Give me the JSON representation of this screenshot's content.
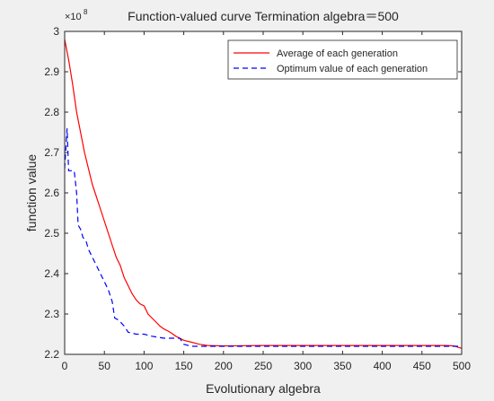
{
  "figure": {
    "background": "#f0f0f0"
  },
  "chart_data": {
    "type": "line",
    "title": "Function-valued curve  Termination algebra＝500",
    "xlabel": "Evolutionary algebra",
    "ylabel": "function value",
    "y_exponent_label": "×10",
    "y_exponent_power": "8",
    "xlim": [
      0,
      500
    ],
    "ylim": [
      2.2,
      3.0
    ],
    "x_ticks": [
      0,
      50,
      100,
      150,
      200,
      250,
      300,
      350,
      400,
      450,
      500
    ],
    "y_ticks": [
      2.2,
      2.3,
      2.4,
      2.5,
      2.6,
      2.7,
      2.8,
      2.9,
      3.0
    ],
    "y_tick_labels": [
      "2.2",
      "2.3",
      "2.4",
      "2.5",
      "2.6",
      "2.7",
      "2.8",
      "2.9",
      "3"
    ],
    "grid": false,
    "legend_position": "top-right",
    "series": [
      {
        "name": "Average of each generation",
        "color": "#ff0000",
        "style": "solid",
        "points": [
          [
            0,
            2.98
          ],
          [
            5,
            2.93
          ],
          [
            10,
            2.87
          ],
          [
            15,
            2.8
          ],
          [
            20,
            2.75
          ],
          [
            25,
            2.7
          ],
          [
            30,
            2.66
          ],
          [
            35,
            2.62
          ],
          [
            40,
            2.59
          ],
          [
            45,
            2.56
          ],
          [
            50,
            2.53
          ],
          [
            55,
            2.5
          ],
          [
            60,
            2.47
          ],
          [
            65,
            2.44
          ],
          [
            70,
            2.42
          ],
          [
            75,
            2.39
          ],
          [
            80,
            2.37
          ],
          [
            85,
            2.35
          ],
          [
            90,
            2.335
          ],
          [
            95,
            2.325
          ],
          [
            100,
            2.32
          ],
          [
            105,
            2.3
          ],
          [
            110,
            2.29
          ],
          [
            115,
            2.28
          ],
          [
            120,
            2.27
          ],
          [
            125,
            2.263
          ],
          [
            130,
            2.258
          ],
          [
            135,
            2.252
          ],
          [
            140,
            2.245
          ],
          [
            145,
            2.24
          ],
          [
            150,
            2.235
          ],
          [
            160,
            2.23
          ],
          [
            170,
            2.225
          ],
          [
            180,
            2.222
          ],
          [
            200,
            2.221
          ],
          [
            250,
            2.222
          ],
          [
            300,
            2.222
          ],
          [
            350,
            2.222
          ],
          [
            400,
            2.222
          ],
          [
            450,
            2.222
          ],
          [
            480,
            2.222
          ],
          [
            490,
            2.221
          ],
          [
            500,
            2.215
          ]
        ]
      },
      {
        "name": "Optimum value of each generation",
        "color": "#0000ff",
        "style": "dashed",
        "points": [
          [
            0,
            2.66
          ],
          [
            3,
            2.76
          ],
          [
            5,
            2.655
          ],
          [
            12,
            2.655
          ],
          [
            15,
            2.6
          ],
          [
            17,
            2.52
          ],
          [
            20,
            2.51
          ],
          [
            23,
            2.49
          ],
          [
            27,
            2.48
          ],
          [
            30,
            2.46
          ],
          [
            35,
            2.44
          ],
          [
            40,
            2.42
          ],
          [
            45,
            2.4
          ],
          [
            50,
            2.38
          ],
          [
            55,
            2.36
          ],
          [
            60,
            2.33
          ],
          [
            63,
            2.29
          ],
          [
            68,
            2.285
          ],
          [
            75,
            2.27
          ],
          [
            80,
            2.255
          ],
          [
            90,
            2.25
          ],
          [
            100,
            2.25
          ],
          [
            110,
            2.245
          ],
          [
            125,
            2.24
          ],
          [
            145,
            2.24
          ],
          [
            150,
            2.225
          ],
          [
            160,
            2.22
          ],
          [
            200,
            2.22
          ],
          [
            250,
            2.22
          ],
          [
            300,
            2.22
          ],
          [
            350,
            2.22
          ],
          [
            400,
            2.22
          ],
          [
            450,
            2.22
          ],
          [
            500,
            2.22
          ]
        ]
      }
    ]
  }
}
